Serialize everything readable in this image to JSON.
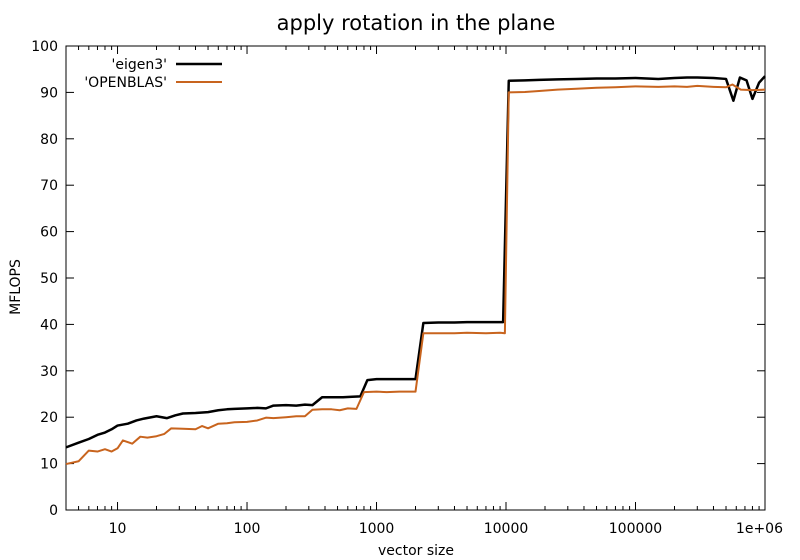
{
  "chart_data": {
    "type": "line",
    "title": "apply rotation in the plane",
    "xlabel": "vector size",
    "ylabel": "MFLOPS",
    "x_scale": "log",
    "xlim": [
      4,
      1000000
    ],
    "ylim": [
      0,
      100
    ],
    "grid": false,
    "legend_position": "top-left",
    "x_ticks": [
      {
        "value": 10,
        "label": "10"
      },
      {
        "value": 100,
        "label": "100"
      },
      {
        "value": 1000,
        "label": "1000"
      },
      {
        "value": 10000,
        "label": "10000"
      },
      {
        "value": 100000,
        "label": "100000"
      },
      {
        "value": 1000000,
        "label": "1e+06"
      }
    ],
    "y_ticks": [
      {
        "value": 0,
        "label": "0"
      },
      {
        "value": 10,
        "label": "10"
      },
      {
        "value": 20,
        "label": "20"
      },
      {
        "value": 30,
        "label": "30"
      },
      {
        "value": 40,
        "label": "40"
      },
      {
        "value": 50,
        "label": "50"
      },
      {
        "value": 60,
        "label": "60"
      },
      {
        "value": 70,
        "label": "70"
      },
      {
        "value": 80,
        "label": "80"
      },
      {
        "value": 90,
        "label": "90"
      },
      {
        "value": 100,
        "label": "100"
      }
    ],
    "series": [
      {
        "name": "'eigen3'",
        "color": "#000000",
        "points": [
          [
            4,
            13.5
          ],
          [
            5,
            14.5
          ],
          [
            6,
            15.3
          ],
          [
            7,
            16.2
          ],
          [
            8,
            16.7
          ],
          [
            9,
            17.4
          ],
          [
            10,
            18.2
          ],
          [
            12,
            18.6
          ],
          [
            14,
            19.3
          ],
          [
            16,
            19.7
          ],
          [
            20,
            20.2
          ],
          [
            24,
            19.8
          ],
          [
            28,
            20.4
          ],
          [
            32,
            20.8
          ],
          [
            40,
            20.9
          ],
          [
            50,
            21.1
          ],
          [
            60,
            21.5
          ],
          [
            70,
            21.7
          ],
          [
            80,
            21.8
          ],
          [
            100,
            21.9
          ],
          [
            120,
            22.0
          ],
          [
            140,
            21.9
          ],
          [
            160,
            22.5
          ],
          [
            200,
            22.6
          ],
          [
            240,
            22.5
          ],
          [
            280,
            22.7
          ],
          [
            320,
            22.6
          ],
          [
            380,
            24.3
          ],
          [
            450,
            24.3
          ],
          [
            550,
            24.3
          ],
          [
            650,
            24.4
          ],
          [
            750,
            24.5
          ],
          [
            850,
            28.0
          ],
          [
            1000,
            28.2
          ],
          [
            1200,
            28.2
          ],
          [
            1500,
            28.2
          ],
          [
            2000,
            28.2
          ],
          [
            2300,
            40.3
          ],
          [
            3000,
            40.4
          ],
          [
            4000,
            40.4
          ],
          [
            5000,
            40.5
          ],
          [
            6000,
            40.5
          ],
          [
            7000,
            40.5
          ],
          [
            8000,
            40.5
          ],
          [
            9500,
            40.5
          ],
          [
            10500,
            92.5
          ],
          [
            14000,
            92.6
          ],
          [
            18000,
            92.7
          ],
          [
            25000,
            92.8
          ],
          [
            35000,
            92.9
          ],
          [
            50000,
            93.0
          ],
          [
            70000,
            93.0
          ],
          [
            100000,
            93.1
          ],
          [
            150000,
            92.9
          ],
          [
            200000,
            93.1
          ],
          [
            250000,
            93.2
          ],
          [
            300000,
            93.2
          ],
          [
            400000,
            93.1
          ],
          [
            500000,
            92.9
          ],
          [
            570000,
            88.2
          ],
          [
            640000,
            93.2
          ],
          [
            720000,
            92.6
          ],
          [
            800000,
            88.6
          ],
          [
            900000,
            92.1
          ],
          [
            1000000,
            93.5
          ]
        ]
      },
      {
        "name": "'OPENBLAS'",
        "color": "#c8641e",
        "points": [
          [
            4,
            9.9
          ],
          [
            5,
            10.5
          ],
          [
            6,
            12.8
          ],
          [
            7,
            12.6
          ],
          [
            8,
            13.1
          ],
          [
            9,
            12.6
          ],
          [
            10,
            13.3
          ],
          [
            11,
            15.0
          ],
          [
            13,
            14.3
          ],
          [
            15,
            15.8
          ],
          [
            17,
            15.6
          ],
          [
            20,
            15.9
          ],
          [
            23,
            16.4
          ],
          [
            26,
            17.6
          ],
          [
            32,
            17.5
          ],
          [
            40,
            17.4
          ],
          [
            45,
            18.1
          ],
          [
            50,
            17.6
          ],
          [
            60,
            18.6
          ],
          [
            70,
            18.7
          ],
          [
            80,
            18.9
          ],
          [
            100,
            19.0
          ],
          [
            120,
            19.3
          ],
          [
            140,
            19.9
          ],
          [
            160,
            19.8
          ],
          [
            200,
            20.0
          ],
          [
            240,
            20.2
          ],
          [
            280,
            20.2
          ],
          [
            320,
            21.6
          ],
          [
            380,
            21.7
          ],
          [
            450,
            21.7
          ],
          [
            520,
            21.5
          ],
          [
            600,
            21.9
          ],
          [
            700,
            21.8
          ],
          [
            800,
            25.4
          ],
          [
            1000,
            25.5
          ],
          [
            1200,
            25.4
          ],
          [
            1500,
            25.5
          ],
          [
            2000,
            25.5
          ],
          [
            2300,
            38.1
          ],
          [
            3000,
            38.1
          ],
          [
            4000,
            38.1
          ],
          [
            5000,
            38.2
          ],
          [
            7000,
            38.1
          ],
          [
            9000,
            38.2
          ],
          [
            9800,
            38.1
          ],
          [
            10500,
            90.0
          ],
          [
            14000,
            90.1
          ],
          [
            18000,
            90.3
          ],
          [
            25000,
            90.6
          ],
          [
            35000,
            90.8
          ],
          [
            50000,
            91.0
          ],
          [
            70000,
            91.1
          ],
          [
            100000,
            91.3
          ],
          [
            150000,
            91.2
          ],
          [
            200000,
            91.3
          ],
          [
            250000,
            91.2
          ],
          [
            300000,
            91.4
          ],
          [
            400000,
            91.2
          ],
          [
            500000,
            91.1
          ],
          [
            560000,
            91.7
          ],
          [
            650000,
            90.6
          ],
          [
            800000,
            90.5
          ],
          [
            1000000,
            90.6
          ]
        ]
      }
    ]
  }
}
